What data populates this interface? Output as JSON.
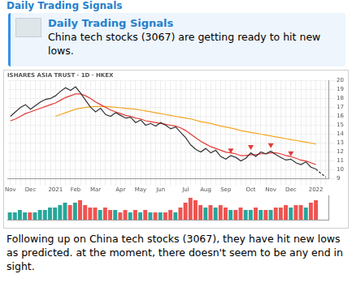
{
  "header": {
    "channel": "Daily Trading Signals"
  },
  "quote": {
    "title": "Daily Trading Signals",
    "text": "China tech stocks (3067) are getting ready to hit new lows."
  },
  "caption": "Following up on China tech stocks (3067), they have hit new lows as predicted. at the moment, there doesn't seem to be any end in sight.",
  "chart_data": [
    {
      "type": "line",
      "title": "ISHARES ASIA TRUST · 1D · HKEX",
      "categories": [
        "Nov",
        null,
        null,
        null,
        "Dec",
        null,
        null,
        null,
        null,
        "2021",
        null,
        null,
        null,
        "Feb",
        null,
        null,
        null,
        "Mar",
        null,
        null,
        null,
        null,
        "Apr",
        null,
        null,
        null,
        "May",
        null,
        null,
        null,
        "Jun",
        null,
        null,
        null,
        null,
        "Jul",
        null,
        null,
        null,
        "Aug",
        null,
        null,
        null,
        "Sep",
        null,
        null,
        null,
        null,
        "Oct",
        null,
        null,
        null,
        "Nov",
        null,
        null,
        null,
        "Dec",
        null,
        null,
        null,
        null,
        "2022",
        null,
        null
      ],
      "series": [
        {
          "type": "line",
          "color": "#333333",
          "values": [
            16.0,
            16.5,
            17.0,
            17.3,
            16.8,
            17.2,
            17.6,
            17.9,
            18.0,
            18.3,
            18.8,
            19.2,
            18.9,
            19.3,
            18.6,
            17.8,
            17.0,
            16.5,
            16.9,
            16.2,
            16.0,
            16.4,
            16.1,
            15.8,
            15.9,
            15.3,
            15.6,
            15.0,
            15.2,
            14.9,
            15.3,
            15.0,
            14.6,
            14.8,
            14.2,
            13.6,
            12.8,
            12.3,
            12.0,
            12.4,
            11.9,
            12.2,
            11.5,
            11.2,
            11.6,
            11.4,
            11.0,
            11.3,
            11.9,
            11.5,
            12.0,
            11.8,
            12.1,
            11.7,
            11.4,
            11.1,
            11.2,
            10.8,
            10.6,
            10.9,
            10.3,
            10.1,
            null,
            null
          ]
        },
        {
          "type": "line",
          "color": "#e53935",
          "values": [
            15.5,
            15.7,
            16.0,
            16.3,
            16.5,
            16.7,
            16.9,
            17.1,
            17.3,
            17.5,
            17.8,
            18.1,
            18.3,
            18.5,
            18.5,
            18.3,
            18.0,
            17.6,
            17.3,
            17.0,
            16.7,
            16.5,
            16.3,
            16.1,
            16.0,
            15.8,
            15.7,
            15.5,
            15.4,
            15.3,
            15.2,
            15.1,
            15.0,
            14.9,
            14.7,
            14.4,
            14.0,
            13.6,
            13.2,
            12.9,
            12.6,
            12.4,
            12.2,
            12.0,
            11.9,
            11.8,
            11.6,
            11.6,
            11.7,
            11.7,
            11.8,
            11.8,
            11.9,
            11.9,
            11.8,
            11.6,
            11.5,
            11.3,
            11.1,
            11.0,
            10.8,
            10.6,
            null,
            null
          ]
        },
        {
          "type": "line",
          "color": "#f5a623",
          "values": [
            null,
            null,
            null,
            null,
            null,
            null,
            null,
            null,
            null,
            16.0,
            16.2,
            16.4,
            16.6,
            16.8,
            16.9,
            17.0,
            17.05,
            17.1,
            17.1,
            17.1,
            17.05,
            17.0,
            16.95,
            16.9,
            16.85,
            16.8,
            16.7,
            16.6,
            16.5,
            16.4,
            16.3,
            16.2,
            16.1,
            16.0,
            15.9,
            15.8,
            15.7,
            15.55,
            15.4,
            15.3,
            15.2,
            15.05,
            14.9,
            14.8,
            14.7,
            14.55,
            14.4,
            14.3,
            14.2,
            14.1,
            14.0,
            13.9,
            13.8,
            13.7,
            13.6,
            13.5,
            13.4,
            13.3,
            13.2,
            13.1,
            13.0,
            12.9,
            null,
            null
          ]
        },
        {
          "type": "line",
          "color": "#333333",
          "line_style": "dashed",
          "values": [
            null,
            null,
            null,
            null,
            null,
            null,
            null,
            null,
            null,
            null,
            null,
            null,
            null,
            null,
            null,
            null,
            null,
            null,
            null,
            null,
            null,
            null,
            null,
            null,
            null,
            null,
            null,
            null,
            null,
            null,
            null,
            null,
            null,
            null,
            null,
            null,
            null,
            null,
            null,
            null,
            null,
            null,
            null,
            null,
            null,
            null,
            null,
            null,
            null,
            null,
            null,
            null,
            null,
            null,
            null,
            null,
            null,
            null,
            null,
            null,
            null,
            10.1,
            9.6,
            9.2
          ]
        },
        {
          "type": "scatter",
          "color": "#e53935",
          "marker": "triangle_down",
          "values": [
            null,
            null,
            null,
            null,
            null,
            null,
            null,
            null,
            null,
            null,
            null,
            null,
            null,
            null,
            null,
            null,
            null,
            null,
            null,
            null,
            null,
            null,
            null,
            null,
            null,
            null,
            null,
            null,
            null,
            null,
            null,
            null,
            null,
            null,
            null,
            null,
            null,
            null,
            null,
            null,
            null,
            null,
            null,
            null,
            12.2,
            null,
            null,
            null,
            12.6,
            null,
            null,
            null,
            12.8,
            null,
            null,
            null,
            11.9,
            null,
            null,
            null,
            null,
            null,
            null,
            null
          ]
        }
      ],
      "ylim": [
        9,
        20
      ],
      "yticks": [
        9,
        10,
        11,
        12,
        13,
        14,
        15,
        16,
        17,
        18,
        19,
        20
      ],
      "grid": true
    },
    {
      "type": "bar",
      "categories": [
        "Nov",
        null,
        null,
        null,
        "Dec",
        null,
        null,
        null,
        null,
        "2021",
        null,
        null,
        null,
        "Feb",
        null,
        null,
        null,
        "Mar",
        null,
        null,
        null,
        null,
        "Apr",
        null,
        null,
        null,
        "May",
        null,
        null,
        null,
        "Jun",
        null,
        null,
        null,
        null,
        "Jul",
        null,
        null,
        null,
        "Aug",
        null,
        null,
        null,
        "Sep",
        null,
        null,
        null,
        null,
        "Oct",
        null,
        null,
        null,
        "Nov",
        null,
        null,
        null,
        "Dec",
        null,
        null,
        null,
        null,
        "2022",
        null,
        null
      ],
      "values": [
        3,
        3,
        4,
        3,
        3,
        3,
        4,
        4,
        5,
        5,
        6,
        7,
        6,
        7,
        8,
        6,
        5,
        5,
        4,
        5,
        4,
        4,
        3,
        4,
        3,
        4,
        3,
        4,
        3,
        3,
        3,
        3,
        4,
        3,
        5,
        7,
        9,
        8,
        6,
        5,
        6,
        5,
        6,
        5,
        4,
        4,
        5,
        4,
        4,
        5,
        4,
        4,
        4,
        5,
        5,
        6,
        5,
        6,
        6,
        5,
        7,
        8,
        null,
        null
      ],
      "colors": [
        "#26a69a",
        "#26a69a",
        "#26a69a",
        "#26a69a",
        "#ef5350",
        "#26a69a",
        "#26a69a",
        "#26a69a",
        "#26a69a",
        "#26a69a",
        "#26a69a",
        "#26a69a",
        "#ef5350",
        "#26a69a",
        "#ef5350",
        "#ef5350",
        "#ef5350",
        "#ef5350",
        "#26a69a",
        "#ef5350",
        "#ef5350",
        "#26a69a",
        "#ef5350",
        "#ef5350",
        "#26a69a",
        "#ef5350",
        "#26a69a",
        "#ef5350",
        "#26a69a",
        "#ef5350",
        "#26a69a",
        "#ef5350",
        "#ef5350",
        "#26a69a",
        "#ef5350",
        "#ef5350",
        "#ef5350",
        "#ef5350",
        "#ef5350",
        "#26a69a",
        "#ef5350",
        "#26a69a",
        "#ef5350",
        "#ef5350",
        "#26a69a",
        "#ef5350",
        "#ef5350",
        "#26a69a",
        "#26a69a",
        "#ef5350",
        "#26a69a",
        "#ef5350",
        "#26a69a",
        "#ef5350",
        "#ef5350",
        "#ef5350",
        "#26a69a",
        "#ef5350",
        "#ef5350",
        "#26a69a",
        "#ef5350",
        "#ef5350",
        "#ef5350",
        "#ef5350"
      ],
      "ylim": [
        0,
        10
      ],
      "tick_labels": false
    }
  ]
}
